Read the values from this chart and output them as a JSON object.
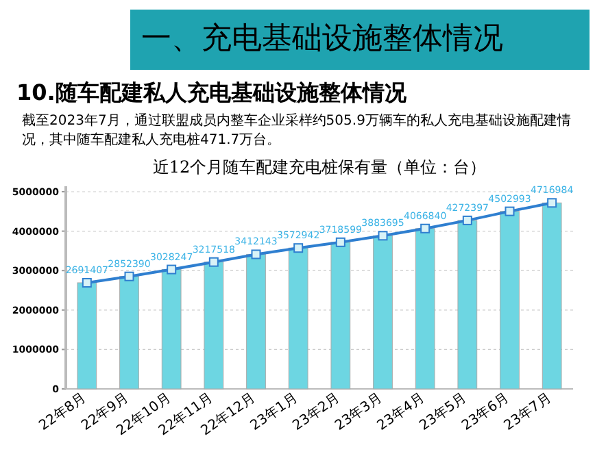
{
  "chart_data": {
    "type": "bar",
    "title": "近12个月随车配建充电桩保有量（单位：台）",
    "annotations": [
      "一、充电基础设施整体情况",
      "10.随车配建私人充电基础设施整体情况",
      "截至2023年7月，通过联盟成员内整车企业采样约505.9万辆车的私人充电基础设施配建情况，其中随车配建私人充电桩471.7万台。"
    ],
    "categories": [
      "22年8月",
      "22年9月",
      "22年10月",
      "22年11月",
      "22年12月",
      "23年1月",
      "23年2月",
      "23年3月",
      "23年4月",
      "23年5月",
      "23年6月",
      "23年7月"
    ],
    "series": [
      {
        "color": "#6dd6e2",
        "values": [
          2691407,
          2852390,
          3028247,
          3217518,
          3412143,
          3572942,
          3718599,
          3883695,
          4066840,
          4272397,
          4502993,
          4716984
        ]
      },
      {
        "type": "line",
        "color": "#2f7fd0",
        "marker": "square",
        "values": [
          2691407,
          2852390,
          3028247,
          3217518,
          3412143,
          3572942,
          3718599,
          3883695,
          4066840,
          4272397,
          4502993,
          4716984
        ],
        "value_labels": [
          "2691407",
          "2852390",
          "3028247",
          "3217518",
          "3412143",
          "3572942",
          "3718599",
          "3883695",
          "4066840",
          "4272397",
          "4502993",
          "4716984"
        ]
      }
    ],
    "ylim": [
      0,
      5000000
    ],
    "yticks": [
      0,
      1000000,
      2000000,
      3000000,
      4000000,
      5000000
    ],
    "grid": "y"
  }
}
